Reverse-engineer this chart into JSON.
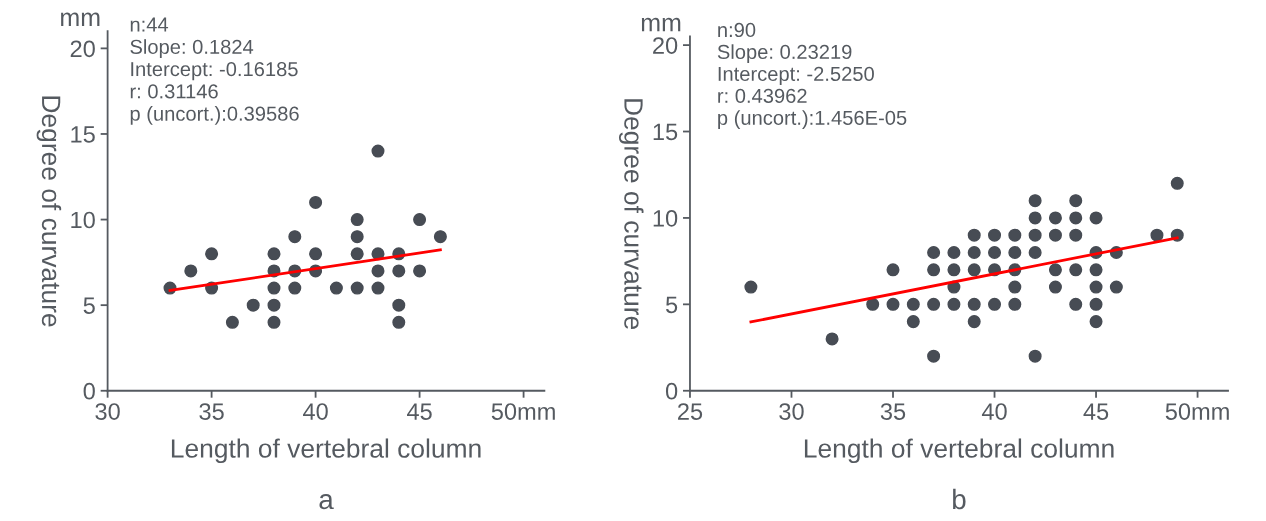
{
  "chart_data": [
    {
      "type": "scatter",
      "xlabel": "Length of vertebral column",
      "ylabel": "Degree of curvature",
      "annotations": [
        "mm",
        "n:44",
        "Slope: 0.1824",
        "Intercept: -0.16185",
        "r: 0.31146",
        "p (uncort.):0.39586",
        "a"
      ],
      "xlim": [
        30,
        51
      ],
      "ylim": [
        0,
        21
      ],
      "xticks": [
        30,
        35,
        40,
        45,
        {
          "value": 50,
          "label": "50mm"
        }
      ],
      "yticks": [
        0,
        5,
        10,
        15,
        20
      ],
      "grid": false,
      "legend": false,
      "series": [
        {
          "marker": "circle",
          "color": "#474c54",
          "x": [
            33,
            34,
            35,
            35,
            36,
            37,
            38,
            38,
            38,
            38,
            38,
            39,
            39,
            39,
            40,
            40,
            40,
            41,
            42,
            42,
            42,
            42,
            43,
            43,
            43,
            43,
            44,
            44,
            44,
            44,
            45,
            45,
            46
          ],
          "values": [
            6,
            7,
            8,
            6,
            4,
            5,
            8,
            7,
            6,
            5,
            4,
            9,
            7,
            6,
            11,
            8,
            7,
            6,
            10,
            9,
            8,
            6,
            14,
            8,
            7,
            6,
            8,
            7,
            5,
            4,
            10,
            7,
            9
          ]
        },
        {
          "type": "line",
          "color": "#ff0000",
          "x": [
            33,
            46
          ],
          "values": [
            5.86,
            8.23
          ]
        }
      ]
    },
    {
      "type": "scatter",
      "xlabel": "Length of vertebral column",
      "ylabel": "Degree of curvature",
      "annotations": [
        "mm",
        "n:90",
        "Slope: 0.23219",
        "Intercept: -2.5250",
        "r: 0.43962",
        "p (uncort.):1.456E-05",
        "b"
      ],
      "xlim": [
        25,
        51.5
      ],
      "ylim": [
        0,
        20.5
      ],
      "xticks": [
        25,
        30,
        35,
        40,
        45,
        {
          "value": 50,
          "label": "50mm"
        }
      ],
      "yticks": [
        0,
        5,
        10,
        15,
        20
      ],
      "grid": false,
      "legend": false,
      "series": [
        {
          "marker": "circle",
          "color": "#474c54",
          "x": [
            28,
            32,
            34,
            35,
            35,
            36,
            36,
            37,
            37,
            37,
            37,
            38,
            38,
            38,
            38,
            39,
            39,
            39,
            39,
            39,
            40,
            40,
            40,
            40,
            41,
            41,
            41,
            41,
            41,
            42,
            42,
            42,
            42,
            42,
            43,
            43,
            43,
            43,
            44,
            44,
            44,
            44,
            44,
            45,
            45,
            45,
            45,
            45,
            45,
            46,
            46,
            48,
            49,
            49
          ],
          "values": [
            6,
            3,
            5,
            7,
            5,
            5,
            4,
            8,
            7,
            5,
            2,
            8,
            7,
            6,
            5,
            9,
            8,
            7,
            5,
            4,
            9,
            8,
            7,
            5,
            9,
            8,
            7,
            6,
            5,
            11,
            10,
            9,
            8,
            2,
            10,
            9,
            7,
            6,
            11,
            10,
            9,
            7,
            5,
            10,
            8,
            7,
            6,
            5,
            4,
            8,
            6,
            9,
            12,
            9
          ]
        },
        {
          "type": "line",
          "color": "#ff0000",
          "x": [
            28,
            49
          ],
          "values": [
            3.98,
            8.85
          ]
        }
      ]
    }
  ]
}
